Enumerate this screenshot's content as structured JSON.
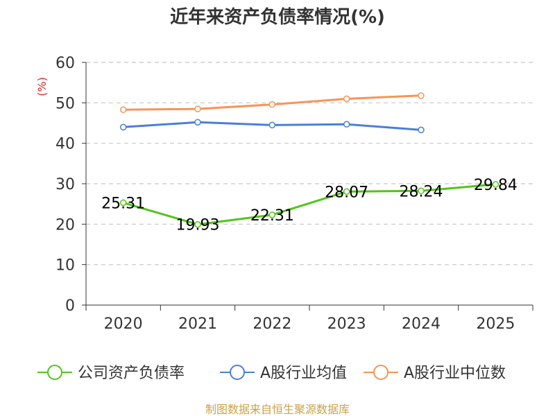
{
  "source_note": "制图数据来自恒生聚源数据库",
  "colors": {
    "text": "#333333",
    "ylabel": "#d62728",
    "source": "#c8a24a",
    "grid": "#c8c8c8",
    "axis": "#333333"
  },
  "chart_data": {
    "type": "line",
    "title": "近年来资产负债率情况(%)",
    "ylabel": "(%)",
    "xlabel": "",
    "categories": [
      "2020",
      "2021",
      "2022",
      "2023",
      "2024",
      "2025"
    ],
    "ylim": [
      0,
      60
    ],
    "yticks": [
      0,
      10,
      20,
      30,
      40,
      50,
      60
    ],
    "grid": true,
    "legend_position": "bottom",
    "series": [
      {
        "name": "公司资产负债率",
        "color": "#52c41a",
        "values": [
          25.31,
          19.93,
          22.31,
          28.07,
          28.24,
          29.84
        ],
        "labels": [
          "25.31",
          "19.93",
          "22.31",
          "28.07",
          "28.24",
          "29.84"
        ]
      },
      {
        "name": "A股行业均值",
        "color": "#4a7fd6",
        "values": [
          44.0,
          45.2,
          44.5,
          44.7,
          43.3,
          null
        ]
      },
      {
        "name": "A股行业中位数",
        "color": "#f79456",
        "values": [
          48.3,
          48.5,
          49.6,
          51.0,
          51.8,
          null
        ]
      }
    ]
  }
}
